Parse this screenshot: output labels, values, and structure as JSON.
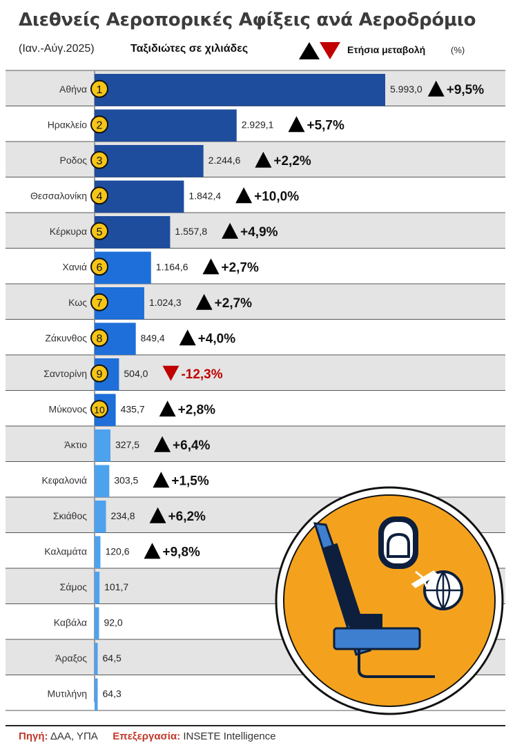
{
  "title": "Διεθνείς Αεροπορικές Αφίξεις ανά Αεροδρόμιο",
  "period": "(Ιαν.-Αύγ.2025)",
  "unit_label": "Ταξιδιώτες σε χιλιάδες",
  "legend": {
    "label": "Ετήσια μεταβολή",
    "unit": "(%)"
  },
  "colors": {
    "dark_blue": "#1f4d9e",
    "mid_blue": "#1e6fd9",
    "light_blue": "#4da2ee",
    "badge": "#f5c518",
    "up": "#000000",
    "down": "#c00000",
    "row_stripe": "#e4e4e4",
    "illustration_circle": "#f4a21d"
  },
  "chart_data": {
    "type": "bar",
    "orientation": "horizontal",
    "categories": [
      "Αθήνα",
      "Ηρακλείο",
      "Ροδος",
      "Θεσσαλονίκη",
      "Κέρκυρα",
      "Χανιά",
      "Κως",
      "Ζάκυνθος",
      "Σαντορίνη",
      "Μύκονος",
      "Άκτιο",
      "Κεφαλονιά",
      "Σκιάθος",
      "Καλαμάτα",
      "Σάμος",
      "Καβάλα",
      "Άραξος",
      "Μυτιλήνη"
    ],
    "values": [
      5993.0,
      2929.1,
      2244.6,
      1842.4,
      1557.8,
      1164.6,
      1024.3,
      849.4,
      504.0,
      435.7,
      327.5,
      303.5,
      234.8,
      120.6,
      101.7,
      92.0,
      64.5,
      64.3
    ],
    "value_labels": [
      "5.993,0",
      "2.929,1",
      "2.244,6",
      "1.842,4",
      "1.557,8",
      "1.164,6",
      "1.024,3",
      "849,4",
      "504,0",
      "435,7",
      "327,5",
      "303,5",
      "234,8",
      "120,6",
      "101,7",
      "92,0",
      "64,5",
      "64,3"
    ],
    "ranks": [
      "1",
      "2",
      "3",
      "4",
      "5",
      "6",
      "7",
      "8",
      "9",
      "10",
      "",
      "",
      "",
      "",
      "",
      "",
      "",
      ""
    ],
    "changes": [
      "+9,5%",
      "+5,7%",
      "+2,2%",
      "+10,0%",
      "+4,9%",
      "+2,7%",
      "+2,7%",
      "+4,0%",
      "-12,3%",
      "+2,8%",
      "+6,4%",
      "+1,5%",
      "+6,2%",
      "+9,8%",
      "",
      "",
      "",
      ""
    ],
    "directions": [
      "up",
      "up",
      "up",
      "up",
      "up",
      "up",
      "up",
      "up",
      "down",
      "up",
      "up",
      "up",
      "up",
      "up",
      "",
      "",
      "",
      ""
    ],
    "xlim": [
      0,
      5993.0
    ]
  },
  "footer": {
    "source_label": "Πηγή:",
    "source": "ΔΑΑ, ΥΠΑ",
    "processing_label": "Επεξεργασία:",
    "processing": "INSETE Intelligence"
  }
}
